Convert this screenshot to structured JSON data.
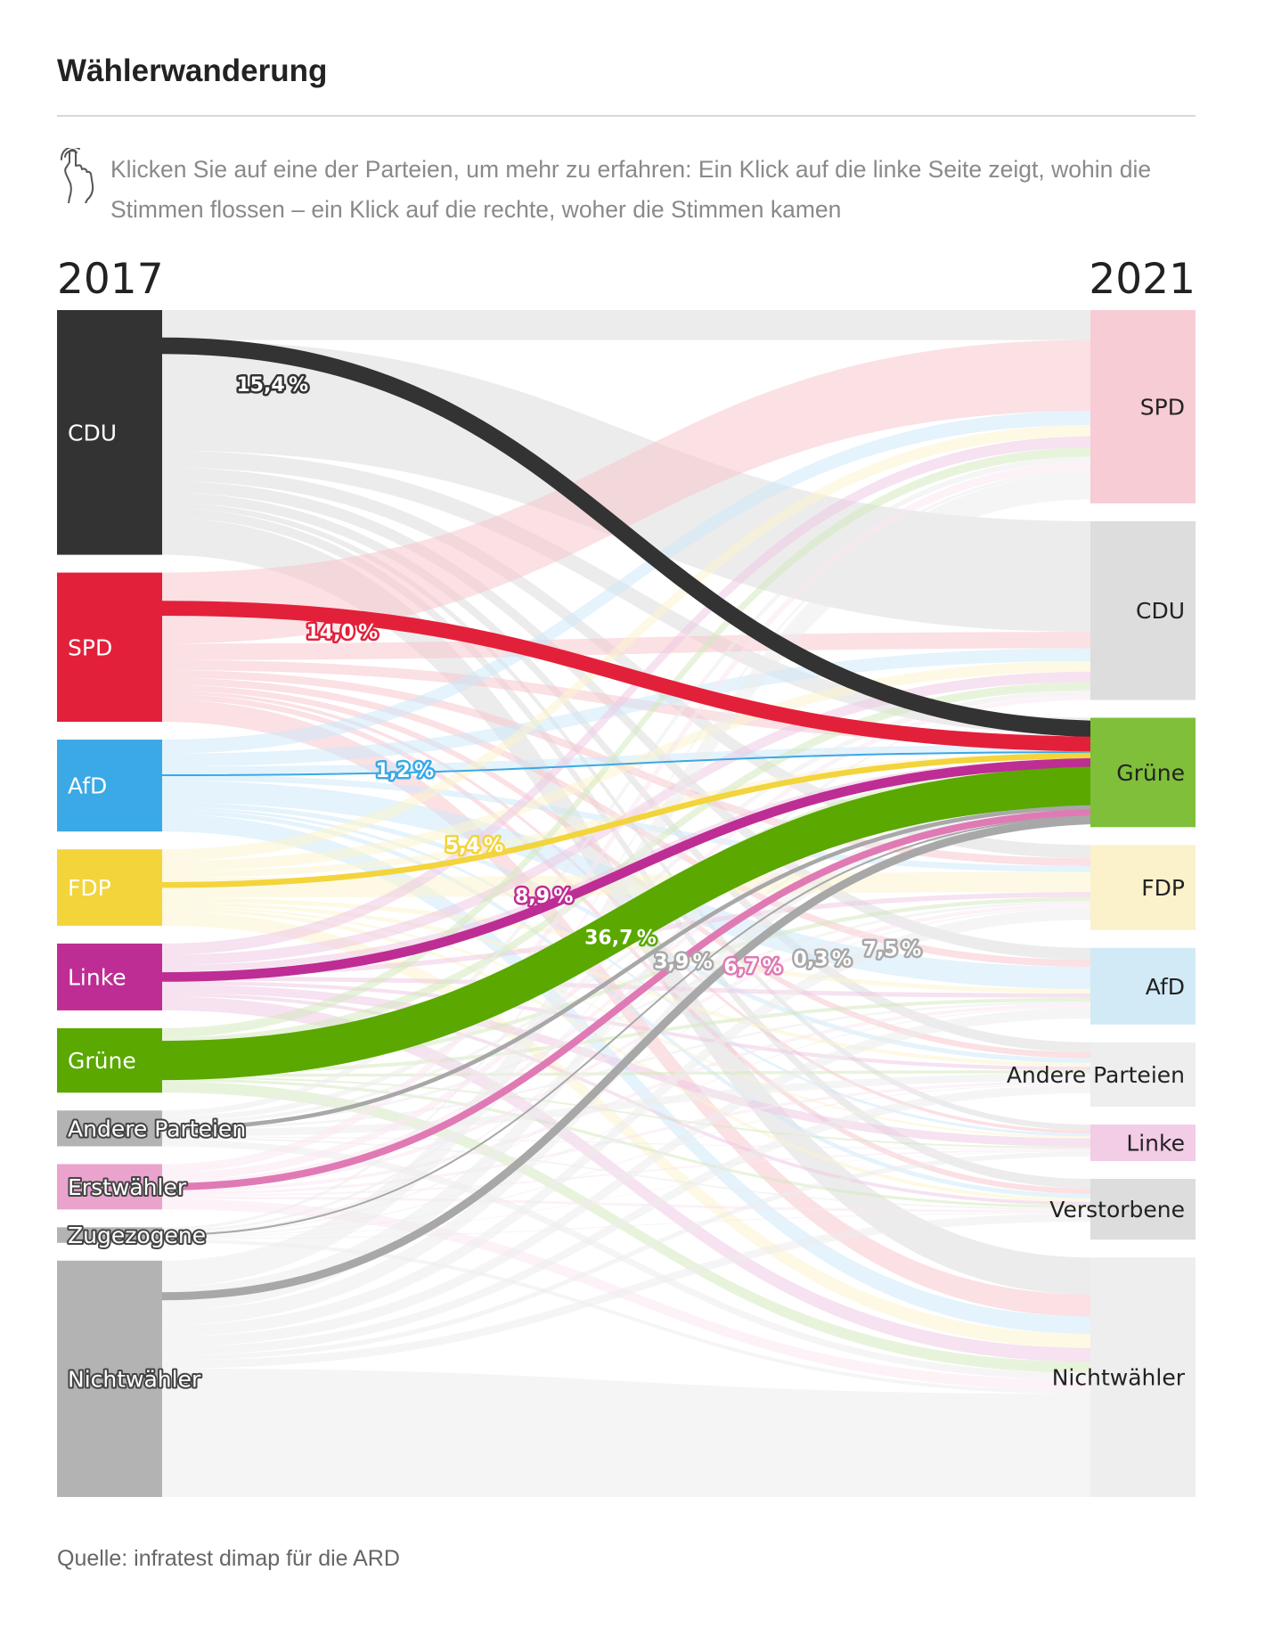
{
  "title": "Wählerwanderung",
  "hint": "Klicken Sie auf eine der Parteien, um mehr zu erfahren: Ein Klick auf die linke Seite zeigt, wohin die Stimmen flossen – ein Klick auf die rechte, woher die Stimmen kamen",
  "source": "Quelle: infratest dimap für die ARD",
  "chart_data": {
    "type": "sankey",
    "title": "Wählerwanderung",
    "left_year": "2017",
    "right_year": "2021",
    "unit_suffix": " ",
    "left_nodes": [
      {
        "id": "cdu",
        "label": "CDU",
        "color": "#333333",
        "value": 20.5
      },
      {
        "id": "spd",
        "label": "SPD",
        "color": "#e3203a",
        "value": 12.5
      },
      {
        "id": "afd",
        "label": "AfD",
        "color": "#3aa9e6",
        "value": 7.7
      },
      {
        "id": "fdp",
        "label": "FDP",
        "color": "#f3d43b",
        "value": 6.4
      },
      {
        "id": "linke",
        "label": "Linke",
        "color": "#be2d94",
        "value": 5.6
      },
      {
        "id": "gruene",
        "label": "Grüne",
        "color": "#5aa800",
        "value": 5.4
      },
      {
        "id": "andere",
        "label": "Andere Parteien",
        "color": "#b3b3b3",
        "value": 3.0
      },
      {
        "id": "erst",
        "label": "Erstwähler",
        "color": "#e9a3cd",
        "value": 3.8
      },
      {
        "id": "zuge",
        "label": "Zugezogene",
        "color": "#b3b3b3",
        "value": 1.3
      },
      {
        "id": "nicht",
        "label": "Nichtwähler",
        "color": "#b3b3b3",
        "value": 19.8
      }
    ],
    "right_nodes": [
      {
        "id": "spd",
        "label": "SPD",
        "color": "#f7ccd4",
        "value": 15.9
      },
      {
        "id": "cdu",
        "label": "CDU",
        "color": "#dddddd",
        "value": 14.7
      },
      {
        "id": "gruene",
        "label": "Grüne",
        "color": "#7fbf3a",
        "value": 9.0
      },
      {
        "id": "fdp",
        "label": "FDP",
        "color": "#fbf1cb",
        "value": 7.0
      },
      {
        "id": "afd",
        "label": "AfD",
        "color": "#d2e9f6",
        "value": 6.3
      },
      {
        "id": "andere",
        "label": "Andere Parteien",
        "color": "#eeeeee",
        "value": 5.3
      },
      {
        "id": "linke",
        "label": "Linke",
        "color": "#f3cce6",
        "value": 3.0
      },
      {
        "id": "verst",
        "label": "Verstorbene",
        "color": "#dddddd",
        "value": 5.0
      },
      {
        "id": "nicht",
        "label": "Nichtwähler",
        "color": "#eeeeee",
        "value": 19.7
      }
    ],
    "highlighted_target": "gruene",
    "highlighted_flows": [
      {
        "source": "cdu",
        "label": "15,4",
        "value": 15.4,
        "color": "#333333"
      },
      {
        "source": "spd",
        "label": "14,0",
        "value": 14.0,
        "color": "#e3203a"
      },
      {
        "source": "afd",
        "label": "1,2",
        "value": 1.2,
        "color": "#3aa9e6"
      },
      {
        "source": "fdp",
        "label": "5,4",
        "value": 5.4,
        "color": "#f3d43b"
      },
      {
        "source": "linke",
        "label": "8,9",
        "value": 8.9,
        "color": "#be2d94"
      },
      {
        "source": "gruene",
        "label": "36,7",
        "value": 36.7,
        "color": "#5aa800"
      },
      {
        "source": "andere",
        "label": "3,9",
        "value": 3.9,
        "color": "#a8a8a8"
      },
      {
        "source": "erst",
        "label": "6,7",
        "value": 6.7,
        "color": "#e07ab5"
      },
      {
        "source": "zuge",
        "label": "0,3",
        "value": 0.3,
        "color": "#a8a8a8"
      },
      {
        "source": "nicht",
        "label": "7,5",
        "value": 7.5,
        "color": "#a8a8a8"
      }
    ]
  }
}
